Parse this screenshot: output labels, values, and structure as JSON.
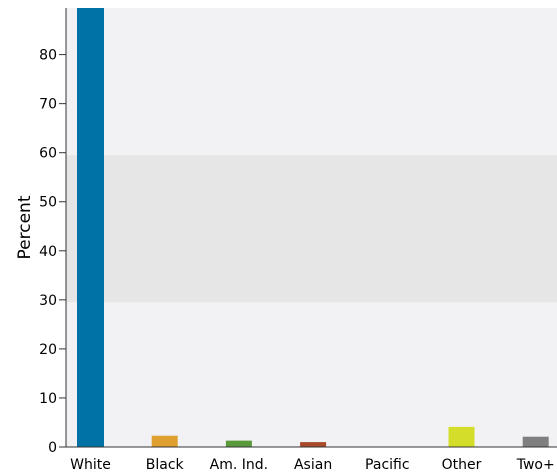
{
  "chart_data": {
    "type": "bar",
    "categories": [
      "White",
      "Black",
      "Am. Ind.",
      "Asian",
      "Pacific",
      "Other",
      "Two+"
    ],
    "values": [
      89.5,
      2.3,
      1.3,
      1.0,
      0.1,
      4.1,
      2.1
    ],
    "colors": [
      "#0072a5",
      "#e0a030",
      "#5a9a3a",
      "#a84a2a",
      "#8a2a6a",
      "#d4dd2a",
      "#7f7f7f"
    ],
    "title": "",
    "xlabel": "",
    "ylabel": "Percent",
    "ylim": [
      0,
      89.5
    ],
    "yticks": [
      0,
      10,
      20,
      30,
      40,
      50,
      60,
      70,
      80
    ],
    "band": [
      29.5,
      59.5
    ],
    "grid": false,
    "legend": "none"
  },
  "colors": {
    "plot_background": "#f2f1f3",
    "band_fill": "#e6e6e6",
    "axis": "#333333"
  }
}
